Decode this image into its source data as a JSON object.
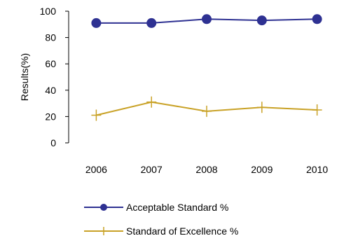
{
  "chart_data": {
    "type": "line",
    "categories": [
      "2006",
      "2007",
      "2008",
      "2009",
      "2010"
    ],
    "series": [
      {
        "name": "Acceptable Standard %",
        "values": [
          91,
          91,
          94,
          93,
          94
        ],
        "color": "#2E3192",
        "marker": "circle"
      },
      {
        "name": "Standard of Excellence %",
        "values": [
          21,
          31,
          24,
          27,
          25
        ],
        "color": "#C9A227",
        "marker": "plus"
      }
    ],
    "title": "",
    "xlabel": "",
    "ylabel": "Results(%)",
    "ylim": [
      0,
      100
    ],
    "yticks": [
      "0",
      "20",
      "40",
      "60",
      "80",
      "100"
    ],
    "grid": false,
    "legend_position": "bottom"
  }
}
